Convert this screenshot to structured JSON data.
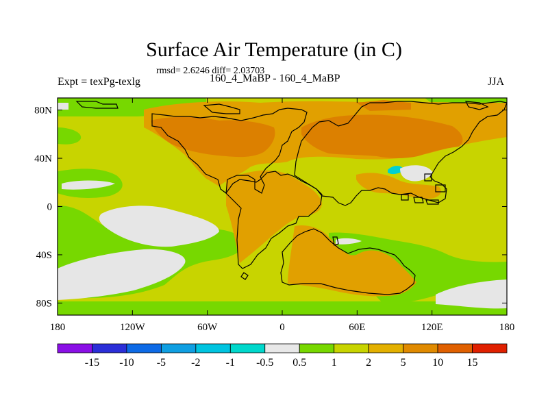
{
  "title": "Surface Air Temperature (in C)",
  "stats_line": "rmsd= 2.6246 diff= 2.03703",
  "experiment_label": "Expt = texPg-texlg",
  "case_label": "160_4_MaBP - 160_4_MaBP",
  "season_label": "JJA",
  "map": {
    "projection": "cylindrical equidistant",
    "lon_range": [
      -180,
      180
    ],
    "lat_range": [
      -90,
      90
    ],
    "x_tick_labels": [
      "180",
      "120W",
      "60W",
      "0",
      "60E",
      "120E",
      "180"
    ],
    "x_tick_values": [
      -180,
      -120,
      -60,
      0,
      60,
      120,
      180
    ],
    "y_tick_labels": [
      "80N",
      "40N",
      "0",
      "40S",
      "80S"
    ],
    "y_tick_values": [
      80,
      40,
      0,
      -40,
      -80
    ],
    "ocean_base_level_color": "#c8d400",
    "fill_colors": {
      "green": "#77d800",
      "white": "#e6e6e6",
      "light_orange": "#e3b000",
      "orange": "#e1a000",
      "dark_orange": "#dc8000",
      "cyan": "#00d0d0"
    }
  },
  "colorbar": {
    "labels": [
      "-15",
      "-10",
      "-5",
      "-2",
      "-1",
      "-0.5",
      "0.5",
      "1",
      "2",
      "5",
      "10",
      "15"
    ],
    "colors": [
      "#8a0fe6",
      "#2b2ed8",
      "#0d6ae6",
      "#0f9fe2",
      "#00c4e0",
      "#00d8cc",
      "#e8e8e8",
      "#77d800",
      "#c8d400",
      "#e3b000",
      "#e08a00",
      "#e06000",
      "#e02000"
    ]
  }
}
